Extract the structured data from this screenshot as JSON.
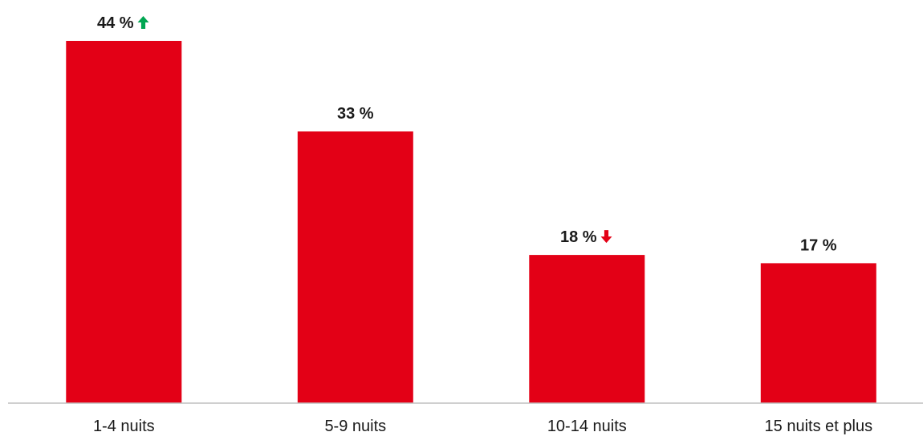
{
  "chart_data": {
    "type": "bar",
    "title": "",
    "xlabel": "",
    "ylabel": "",
    "categories": [
      "1-4 nuits",
      "5-9 nuits",
      "10-14 nuits",
      "15 nuits et plus"
    ],
    "values": [
      44,
      33,
      18,
      17
    ],
    "value_labels": [
      "44 %",
      "33 %",
      "18 %",
      "17 %"
    ],
    "trend_icons": [
      "arrow-up-icon",
      null,
      "arrow-down-icon",
      null
    ],
    "ylim": [
      0,
      48
    ],
    "grid": false,
    "legend": "none",
    "colors": {
      "bar": "#e30016",
      "trend_up": "#00a651",
      "trend_down": "#e30016",
      "axis": "#bfbfbf",
      "text": "#1a1a1a"
    }
  }
}
